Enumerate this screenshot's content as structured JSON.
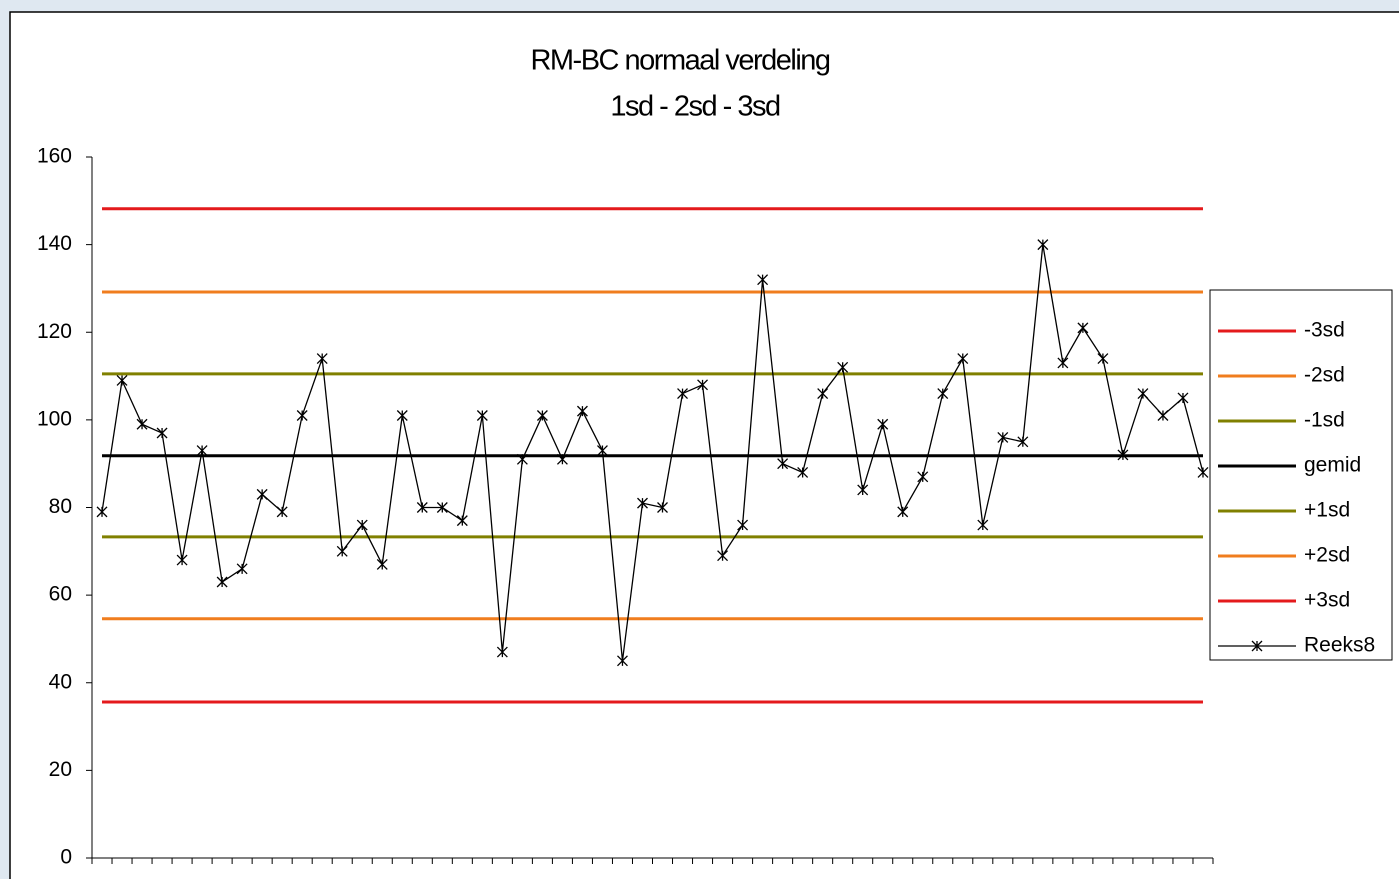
{
  "chart_data": {
    "type": "line",
    "title": "RM-BC normaal verdeling",
    "subtitle": "1sd - 2sd - 3sd",
    "categories": [
      null,
      null,
      null,
      null,
      null,
      null,
      null,
      null,
      null,
      null,
      null,
      null,
      null,
      null,
      null,
      null,
      null,
      null,
      null,
      null,
      null,
      null,
      null,
      null,
      null,
      null,
      null,
      null,
      null,
      null,
      null,
      null,
      null,
      null,
      null,
      null,
      null,
      null,
      null,
      null,
      null,
      null,
      null,
      null,
      null,
      null,
      null,
      null,
      null,
      null,
      null,
      null,
      null,
      null,
      null,
      null
    ],
    "ylim": [
      0,
      160
    ],
    "yticks": [
      0,
      20,
      40,
      60,
      80,
      100,
      120,
      140,
      160
    ],
    "legend": "right",
    "series": [
      {
        "name": "-3sd",
        "color": "#e41a1c",
        "values": [
          148.2,
          148.2,
          148.2,
          148.2,
          148.2,
          148.2,
          148.2,
          148.2,
          148.2,
          148.2,
          148.2,
          148.2,
          148.2,
          148.2,
          148.2,
          148.2,
          148.2,
          148.2,
          148.2,
          148.2,
          148.2,
          148.2,
          148.2,
          148.2,
          148.2,
          148.2,
          148.2,
          148.2,
          148.2,
          148.2,
          148.2,
          148.2,
          148.2,
          148.2,
          148.2,
          148.2,
          148.2,
          148.2,
          148.2,
          148.2,
          148.2,
          148.2,
          148.2,
          148.2,
          148.2,
          148.2,
          148.2,
          148.2,
          148.2,
          148.2,
          148.2,
          148.2,
          148.2,
          148.2,
          148.2,
          148.2
        ]
      },
      {
        "name": "-2sd",
        "color": "#f07d1e",
        "values": [
          129.2,
          129.2,
          129.2,
          129.2,
          129.2,
          129.2,
          129.2,
          129.2,
          129.2,
          129.2,
          129.2,
          129.2,
          129.2,
          129.2,
          129.2,
          129.2,
          129.2,
          129.2,
          129.2,
          129.2,
          129.2,
          129.2,
          129.2,
          129.2,
          129.2,
          129.2,
          129.2,
          129.2,
          129.2,
          129.2,
          129.2,
          129.2,
          129.2,
          129.2,
          129.2,
          129.2,
          129.2,
          129.2,
          129.2,
          129.2,
          129.2,
          129.2,
          129.2,
          129.2,
          129.2,
          129.2,
          129.2,
          129.2,
          129.2,
          129.2,
          129.2,
          129.2,
          129.2,
          129.2,
          129.2,
          129.2
        ]
      },
      {
        "name": "-1sd",
        "color": "#808000",
        "values": [
          110.5,
          110.5,
          110.5,
          110.5,
          110.5,
          110.5,
          110.5,
          110.5,
          110.5,
          110.5,
          110.5,
          110.5,
          110.5,
          110.5,
          110.5,
          110.5,
          110.5,
          110.5,
          110.5,
          110.5,
          110.5,
          110.5,
          110.5,
          110.5,
          110.5,
          110.5,
          110.5,
          110.5,
          110.5,
          110.5,
          110.5,
          110.5,
          110.5,
          110.5,
          110.5,
          110.5,
          110.5,
          110.5,
          110.5,
          110.5,
          110.5,
          110.5,
          110.5,
          110.5,
          110.5,
          110.5,
          110.5,
          110.5,
          110.5,
          110.5,
          110.5,
          110.5,
          110.5,
          110.5,
          110.5,
          110.5
        ]
      },
      {
        "name": "gemid",
        "color": "#000000",
        "values": [
          91.8,
          91.8,
          91.8,
          91.8,
          91.8,
          91.8,
          91.8,
          91.8,
          91.8,
          91.8,
          91.8,
          91.8,
          91.8,
          91.8,
          91.8,
          91.8,
          91.8,
          91.8,
          91.8,
          91.8,
          91.8,
          91.8,
          91.8,
          91.8,
          91.8,
          91.8,
          91.8,
          91.8,
          91.8,
          91.8,
          91.8,
          91.8,
          91.8,
          91.8,
          91.8,
          91.8,
          91.8,
          91.8,
          91.8,
          91.8,
          91.8,
          91.8,
          91.8,
          91.8,
          91.8,
          91.8,
          91.8,
          91.8,
          91.8,
          91.8,
          91.8,
          91.8,
          91.8,
          91.8,
          91.8,
          91.8
        ]
      },
      {
        "name": "+1sd",
        "color": "#808000",
        "values": [
          73.3,
          73.3,
          73.3,
          73.3,
          73.3,
          73.3,
          73.3,
          73.3,
          73.3,
          73.3,
          73.3,
          73.3,
          73.3,
          73.3,
          73.3,
          73.3,
          73.3,
          73.3,
          73.3,
          73.3,
          73.3,
          73.3,
          73.3,
          73.3,
          73.3,
          73.3,
          73.3,
          73.3,
          73.3,
          73.3,
          73.3,
          73.3,
          73.3,
          73.3,
          73.3,
          73.3,
          73.3,
          73.3,
          73.3,
          73.3,
          73.3,
          73.3,
          73.3,
          73.3,
          73.3,
          73.3,
          73.3,
          73.3,
          73.3,
          73.3,
          73.3,
          73.3,
          73.3,
          73.3,
          73.3,
          73.3
        ]
      },
      {
        "name": "+2sd",
        "color": "#f07d1e",
        "values": [
          54.6,
          54.6,
          54.6,
          54.6,
          54.6,
          54.6,
          54.6,
          54.6,
          54.6,
          54.6,
          54.6,
          54.6,
          54.6,
          54.6,
          54.6,
          54.6,
          54.6,
          54.6,
          54.6,
          54.6,
          54.6,
          54.6,
          54.6,
          54.6,
          54.6,
          54.6,
          54.6,
          54.6,
          54.6,
          54.6,
          54.6,
          54.6,
          54.6,
          54.6,
          54.6,
          54.6,
          54.6,
          54.6,
          54.6,
          54.6,
          54.6,
          54.6,
          54.6,
          54.6,
          54.6,
          54.6,
          54.6,
          54.6,
          54.6,
          54.6,
          54.6,
          54.6,
          54.6,
          54.6,
          54.6,
          54.6
        ]
      },
      {
        "name": "+3sd",
        "color": "#e41a1c",
        "values": [
          35.6,
          35.6,
          35.6,
          35.6,
          35.6,
          35.6,
          35.6,
          35.6,
          35.6,
          35.6,
          35.6,
          35.6,
          35.6,
          35.6,
          35.6,
          35.6,
          35.6,
          35.6,
          35.6,
          35.6,
          35.6,
          35.6,
          35.6,
          35.6,
          35.6,
          35.6,
          35.6,
          35.6,
          35.6,
          35.6,
          35.6,
          35.6,
          35.6,
          35.6,
          35.6,
          35.6,
          35.6,
          35.6,
          35.6,
          35.6,
          35.6,
          35.6,
          35.6,
          35.6,
          35.6,
          35.6,
          35.6,
          35.6,
          35.6,
          35.6,
          35.6,
          35.6,
          35.6,
          35.6,
          35.6,
          35.6
        ]
      },
      {
        "name": "Reeks8",
        "color": "#000000",
        "marker": "star",
        "values": [
          79,
          109,
          99,
          97,
          68,
          93,
          63,
          66,
          83,
          79,
          101,
          114,
          70,
          76,
          67,
          101,
          80,
          80,
          77,
          101,
          47,
          91,
          101,
          91,
          102,
          93,
          45,
          81,
          80,
          106,
          108,
          69,
          76,
          132,
          90,
          88,
          106,
          112,
          84,
          99,
          79,
          87,
          106,
          114,
          76,
          96,
          95,
          140,
          113,
          121,
          114,
          92,
          106,
          101,
          105,
          88
        ]
      }
    ]
  }
}
